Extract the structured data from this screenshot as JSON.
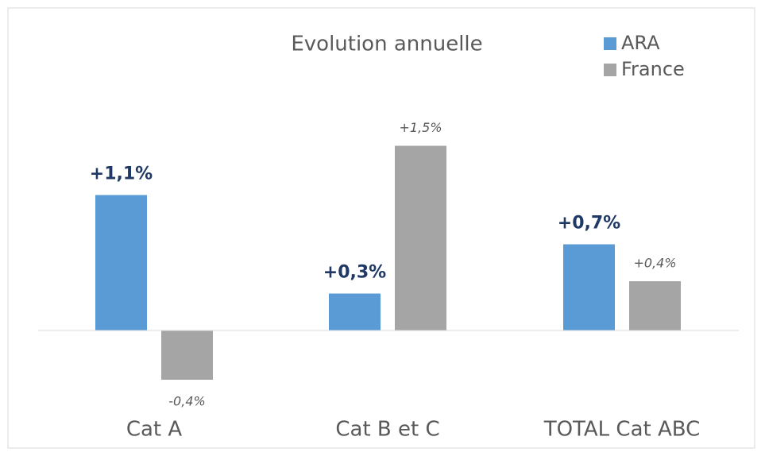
{
  "chart_data": {
    "type": "bar",
    "title": "Evolution annuelle",
    "categories": [
      "Cat A",
      "Cat B et C",
      "TOTAL Cat ABC"
    ],
    "series": [
      {
        "name": "ARA",
        "color": "#5b9bd5",
        "values": [
          1.1,
          0.3,
          0.7
        ],
        "value_labels": [
          "+1,1%",
          "+0,3%",
          "+0,7%"
        ]
      },
      {
        "name": "France",
        "color": "#a5a5a5",
        "values": [
          -0.4,
          1.5,
          0.4
        ],
        "value_labels": [
          "-0,4%",
          "+1,5%",
          "+0,4%"
        ]
      }
    ],
    "ylim": [
      -0.7,
      1.9
    ],
    "legend": "top-right"
  }
}
